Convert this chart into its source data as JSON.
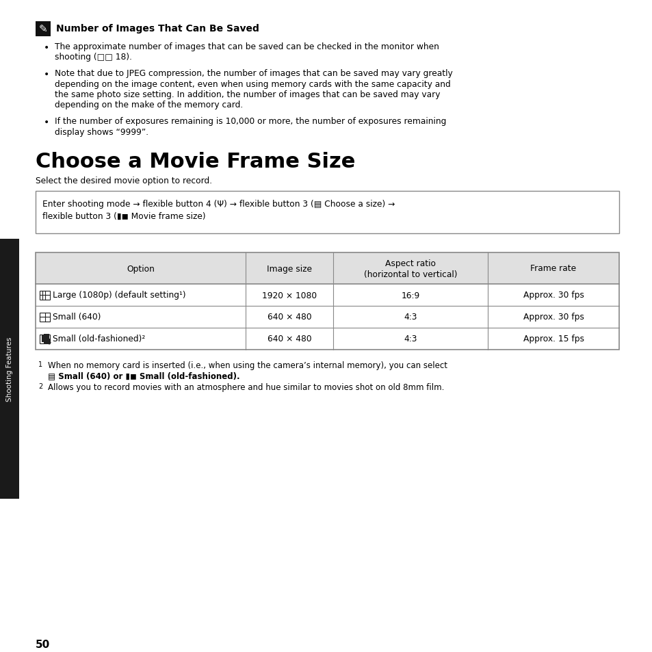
{
  "bg_color": "#ffffff",
  "sidebar_color": "#1a1a1a",
  "sidebar_text": "Shooting Features",
  "page_number": "50",
  "note_title": "Number of Images That Can Be Saved",
  "bullet1_line1": "The approximate number of images that can be saved can be checked in the monitor when",
  "bullet1_line2": "shooting (□□ 18).",
  "bullet2_line1": "Note that due to JPEG compression, the number of images that can be saved may vary greatly",
  "bullet2_line2": "depending on the image content, even when using memory cards with the same capacity and",
  "bullet2_line3": "the same photo size setting. In addition, the number of images that can be saved may vary",
  "bullet2_line4": "depending on the make of the memory card.",
  "bullet3_line1": "If the number of exposures remaining is 10,000 or more, the number of exposures remaining",
  "bullet3_line2": "display shows “9999”.",
  "section_title": "Choose a Movie Frame Size",
  "section_subtitle": "Select the desired movie option to record.",
  "instr_line1": "Enter shooting mode → flexible button 4 (Ψ) → flexible button 3 (▤ Choose a size) →",
  "instr_line2": "flexible button 3 (▮◼ Movie frame size)",
  "table_headers": [
    "Option",
    "Image size",
    "Aspect ratio",
    "(horizontal to vertical)",
    "Frame rate"
  ],
  "table_rows": [
    [
      "Large (1080p) (default setting¹)",
      "1920 × 1080",
      "16:9",
      "Approx. 30 fps"
    ],
    [
      "Small (640)",
      "640 × 480",
      "4:3",
      "Approx. 30 fps"
    ],
    [
      "Small (old-fashioned)²",
      "640 × 480",
      "4:3",
      "Approx. 15 fps"
    ]
  ],
  "fn1_line1": "When no memory card is inserted (i.e., when using the camera’s internal memory), you can select",
  "fn1_line2_bold": "▤ Small (640) or ▮◼ Small (old-fashioned).",
  "fn2_line1": "Allows you to record movies with an atmosphere and hue similar to movies shot on old 8mm film.",
  "text_color": "#000000",
  "border_color": "#888888",
  "header_bg": "#e0e0e0"
}
